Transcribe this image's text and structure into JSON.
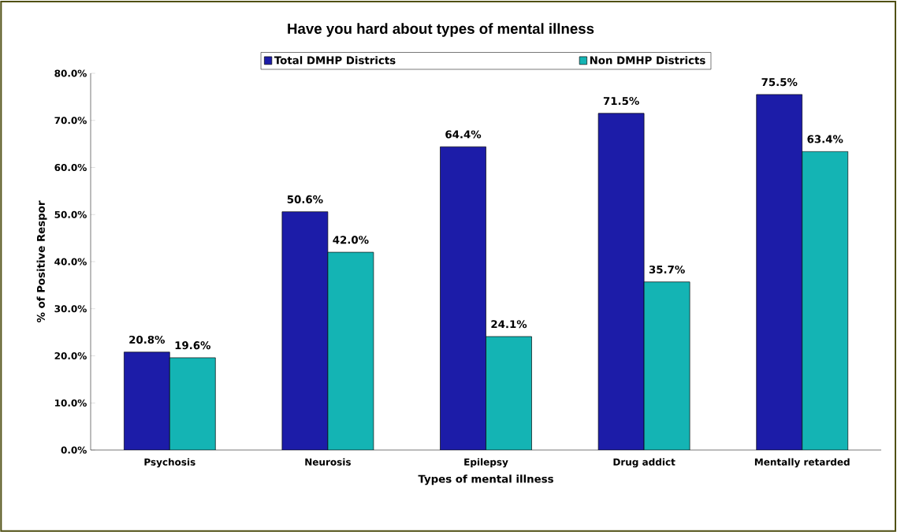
{
  "chart_data": {
    "type": "bar",
    "title": "Have you hard about types of mental illness",
    "xlabel": "Types of mental illness",
    "ylabel": "% of Positive Respor",
    "categories": [
      "Psychosis",
      "Neurosis",
      "Epilepsy",
      "Drug addict",
      "Mentally retarded"
    ],
    "series": [
      {
        "name": "Total DMHP Districts",
        "color": "#1c1ca8",
        "values": [
          20.8,
          50.6,
          64.4,
          71.5,
          75.5
        ],
        "value_labels": [
          "20.8%",
          "50.6%",
          "64.4%",
          "71.5%",
          "75.5%"
        ]
      },
      {
        "name": "Non DMHP Districts",
        "color": "#14b4b4",
        "values": [
          19.6,
          42.0,
          24.1,
          35.7,
          63.4
        ],
        "value_labels": [
          "19.6%",
          "42.0%",
          "24.1%",
          "35.7%",
          "63.4%"
        ]
      }
    ],
    "ylim": [
      0,
      80
    ],
    "yticks": [
      {
        "value": 0,
        "label": "0.0%"
      },
      {
        "value": 10,
        "label": "10.0%"
      },
      {
        "value": 20,
        "label": "20.0%"
      },
      {
        "value": 30,
        "label": "30.0%"
      },
      {
        "value": 40,
        "label": "40.0%"
      },
      {
        "value": 50,
        "label": "50.0%"
      },
      {
        "value": 60,
        "label": "60.0%"
      },
      {
        "value": 70,
        "label": "70.0%"
      },
      {
        "value": 80,
        "label": "80.0%"
      }
    ],
    "grid": false,
    "legend": "top"
  }
}
